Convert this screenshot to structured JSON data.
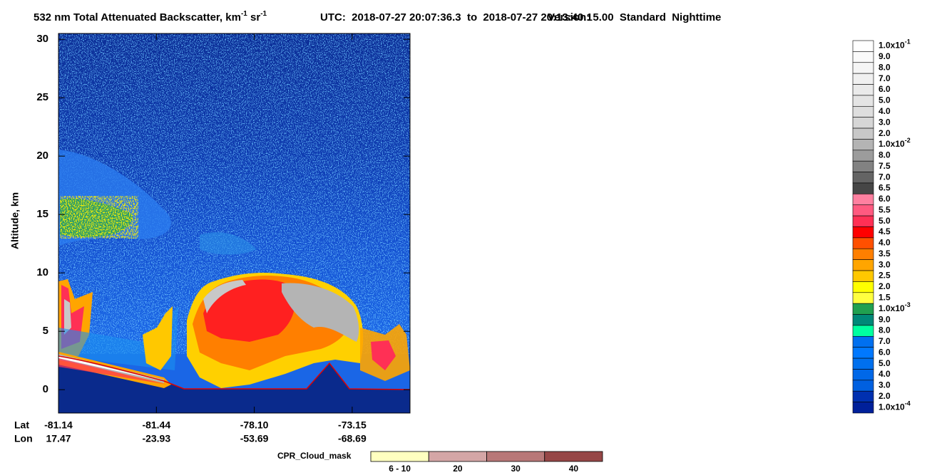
{
  "chart_data": {
    "type": "heatmap",
    "title": {
      "prefix": "532 nm Total Attenuated Backscatter, km",
      "exp1": "-1",
      "unit2": " sr",
      "exp2": "-1"
    },
    "time_range": "UTC:  2018-07-27 20:07:36.3  to  2018-07-27 20:13:40.1",
    "version": "Version: 5.00  Standard  Nighttime",
    "ylabel": "Altitude, km",
    "ylim": [
      -2,
      30.5
    ],
    "yticks": [
      0,
      5,
      10,
      15,
      20,
      25,
      30
    ],
    "x_rows": [
      {
        "name": "Lat",
        "labels": [
          "-81.14",
          "-81.44",
          "-78.10",
          "-73.15"
        ]
      },
      {
        "name": "Lon",
        "labels": [
          "17.47",
          "-23.93",
          "-53.69",
          "-68.69"
        ]
      }
    ],
    "colorbar": [
      {
        "label": "1.0x10",
        "exp": "-1",
        "color": "#ffffff"
      },
      {
        "label": "9.0",
        "color": "#fafafa"
      },
      {
        "label": "8.0",
        "color": "#f5f5f5"
      },
      {
        "label": "7.0",
        "color": "#f0f0f0"
      },
      {
        "label": "6.0",
        "color": "#eaeaea"
      },
      {
        "label": "5.0",
        "color": "#e4e4e4"
      },
      {
        "label": "4.0",
        "color": "#dedede"
      },
      {
        "label": "3.0",
        "color": "#d6d6d6"
      },
      {
        "label": "2.0",
        "color": "#c8c8c8"
      },
      {
        "label": "1.0x10",
        "exp": "-2",
        "color": "#b4b4b4"
      },
      {
        "label": "8.0",
        "color": "#9c9c9c"
      },
      {
        "label": "7.5",
        "color": "#828282"
      },
      {
        "label": "7.0",
        "color": "#646464"
      },
      {
        "label": "6.5",
        "color": "#464646"
      },
      {
        "label": "6.0",
        "color": "#ff80a0"
      },
      {
        "label": "5.5",
        "color": "#ff5a80"
      },
      {
        "label": "5.0",
        "color": "#ff3055"
      },
      {
        "label": "4.5",
        "color": "#ff0000"
      },
      {
        "label": "4.0",
        "color": "#ff5000"
      },
      {
        "label": "3.5",
        "color": "#ff7f00"
      },
      {
        "label": "3.0",
        "color": "#ffa500"
      },
      {
        "label": "2.5",
        "color": "#ffc800"
      },
      {
        "label": "2.0",
        "color": "#ffff00"
      },
      {
        "label": "1.5",
        "color": "#ffff40"
      },
      {
        "label": "1.0x10",
        "exp": "-3",
        "color": "#20a050"
      },
      {
        "label": "9.0",
        "color": "#008878"
      },
      {
        "label": "8.0",
        "color": "#00ffa0"
      },
      {
        "label": "7.0",
        "color": "#0070f0"
      },
      {
        "label": "6.0",
        "color": "#0078ff"
      },
      {
        "label": "5.0",
        "color": "#0070ee"
      },
      {
        "label": "4.0",
        "color": "#0068e8"
      },
      {
        "label": "3.0",
        "color": "#0060e0"
      },
      {
        "label": "2.0",
        "color": "#0030b0"
      },
      {
        "label": "1.0x10",
        "exp": "-4",
        "color": "#00209a"
      }
    ],
    "cloud_mask": {
      "title": "CPR_Cloud_mask",
      "labels": [
        "6 - 10",
        "20",
        "30",
        "40"
      ],
      "colors": [
        "#ffffc0",
        "#d4a6a6",
        "#b87878",
        "#964646"
      ]
    }
  }
}
